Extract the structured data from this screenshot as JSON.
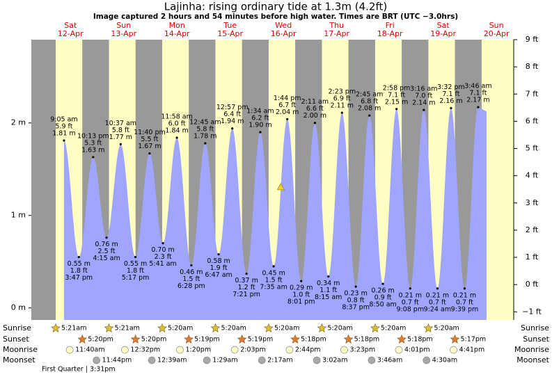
{
  "chart_data": {
    "type": "tide",
    "title": "Lajinha: rising  ordinary tide at 1.3m (4.2ft)",
    "subtitle": "Image captured 2 hours and 54 minutes before high water. Times are BRT (UTC −3.0hrs)",
    "ylim": [
      -0.13,
      2.9
    ],
    "yticks": [
      {
        "value": 0,
        "label": "0 m"
      },
      {
        "value": 1,
        "label": "1 m"
      },
      {
        "value": 2,
        "label": "2 m"
      }
    ],
    "y2lim": [
      -1.3,
      9.0
    ],
    "y2ticks": [
      {
        "value": -1,
        "label": "−1 ft"
      },
      {
        "value": 0,
        "label": "0 ft"
      },
      {
        "value": 1,
        "label": "1 ft"
      },
      {
        "value": 2,
        "label": "2 ft"
      },
      {
        "value": 3,
        "label": "3 ft"
      },
      {
        "value": 4,
        "label": "4 ft"
      },
      {
        "value": 5,
        "label": "5 ft"
      },
      {
        "value": 6,
        "label": "6 ft"
      },
      {
        "value": 7,
        "label": "7 ft"
      },
      {
        "value": 8,
        "label": "8 ft"
      },
      {
        "value": 9,
        "label": "9 ft"
      }
    ],
    "colors": {
      "water": "#a0a6ff",
      "day": "#ffffc4",
      "night": "#999999",
      "sunrise": "#d8c030",
      "sunset": "#e07a30",
      "moonrise": "#ffffc8",
      "moonset": "#a8a8a8"
    },
    "now": {
      "date": "16-Apr",
      "m": 1.3
    },
    "row_labels": [
      "Sunrise",
      "Sunset",
      "Moonrise",
      "Moonset"
    ],
    "phase": "First Quarter | 3:31pm",
    "days": [
      {
        "name": "Sat",
        "date": "12-Apr",
        "sunrise": "5:21am",
        "sunset": "5:20pm",
        "moonrise": "11:40am",
        "moonset": "11:44pm",
        "tides": [
          {
            "time": "9:05 am",
            "m": 1.81,
            "m_label": "1.81 m",
            "ft": 5.9,
            "ft_label": "5.9 ft"
          },
          {
            "time": "3:47 pm",
            "m": 0.55,
            "m_label": "0.55 m",
            "ft": 1.8,
            "ft_label": "1.8 ft"
          },
          {
            "time": "10:13 pm",
            "m": 1.63,
            "m_label": "1.63 m",
            "ft": 5.3,
            "ft_label": "5.3 ft"
          }
        ]
      },
      {
        "name": "Sun",
        "date": "13-Apr",
        "sunrise": "5:21am",
        "sunset": "5:20pm",
        "moonrise": "12:32pm",
        "tides": [
          {
            "time": "4:15 am",
            "m": 0.76,
            "m_label": "0.76 m",
            "ft": 2.5,
            "ft_label": "2.5 ft"
          },
          {
            "time": "10:37 am",
            "m": 1.77,
            "m_label": "1.77 m",
            "ft": 5.8,
            "ft_label": "5.8 ft"
          },
          {
            "time": "5:17 pm",
            "m": 0.55,
            "m_label": "0.55 m",
            "ft": 1.8,
            "ft_label": "1.8 ft"
          },
          {
            "time": "11:40 pm",
            "m": 1.67,
            "m_label": "1.67 m",
            "ft": 5.5,
            "ft_label": "5.5 ft"
          }
        ]
      },
      {
        "name": "Mon",
        "date": "14-Apr",
        "sunrise": "5:20am",
        "sunset": "5:19pm",
        "moonrise": "1:20pm",
        "moonset": "12:39am",
        "tides": [
          {
            "time": "5:41 am",
            "m": 0.7,
            "m_label": "0.70 m",
            "ft": 2.3,
            "ft_label": "2.3 ft"
          },
          {
            "time": "11:58 am",
            "m": 1.84,
            "m_label": "1.84 m",
            "ft": 6.0,
            "ft_label": "6.0 ft"
          },
          {
            "time": "6:28 pm",
            "m": 0.46,
            "m_label": "0.46 m",
            "ft": 1.5,
            "ft_label": "1.5 ft"
          }
        ]
      },
      {
        "name": "Tue",
        "date": "15-Apr",
        "sunrise": "5:20am",
        "sunset": "5:19pm",
        "moonrise": "2:03pm",
        "moonset": "1:29am",
        "tides": [
          {
            "time": "12:45 am",
            "m": 1.78,
            "m_label": "1.78 m",
            "ft": 5.8,
            "ft_label": "5.8 ft"
          },
          {
            "time": "6:47 am",
            "m": 0.58,
            "m_label": "0.58 m",
            "ft": 1.9,
            "ft_label": "1.9 ft"
          },
          {
            "time": "12:57 pm",
            "m": 1.94,
            "m_label": "1.94 m",
            "ft": 6.4,
            "ft_label": "6.4 ft"
          },
          {
            "time": "7:21 pm",
            "m": 0.37,
            "m_label": "0.37 m",
            "ft": 1.2,
            "ft_label": "1.2 ft"
          }
        ]
      },
      {
        "name": "Wed",
        "date": "16-Apr",
        "sunrise": "5:20am",
        "sunset": "5:18pm",
        "moonrise": "2:44pm",
        "moonset": "2:17am",
        "tides": [
          {
            "time": "1:34 am",
            "m": 1.9,
            "m_label": "1.90 m",
            "ft": 6.2,
            "ft_label": "6.2 ft"
          },
          {
            "time": "7:35 am",
            "m": 0.45,
            "m_label": "0.45 m",
            "ft": 1.5,
            "ft_label": "1.5 ft"
          },
          {
            "time": "1:44 pm",
            "m": 2.04,
            "m_label": "2.04 m",
            "ft": 6.7,
            "ft_label": "6.7 ft"
          },
          {
            "time": "8:01 pm",
            "m": 0.29,
            "m_label": "0.29 m",
            "ft": 1.0,
            "ft_label": "1.0 ft"
          }
        ]
      },
      {
        "name": "Thu",
        "date": "17-Apr",
        "sunrise": "5:20am",
        "sunset": "5:18pm",
        "moonrise": "3:23pm",
        "moonset": "3:02am",
        "tides": [
          {
            "time": "2:11 am",
            "m": 2.0,
            "m_label": "2.00 m",
            "ft": 6.6,
            "ft_label": "6.6 ft"
          },
          {
            "time": "8:15 am",
            "m": 0.34,
            "m_label": "0.34 m",
            "ft": 1.1,
            "ft_label": "1.1 ft"
          },
          {
            "time": "2:23 pm",
            "m": 2.11,
            "m_label": "2.11 m",
            "ft": 6.9,
            "ft_label": "6.9 ft"
          },
          {
            "time": "8:37 pm",
            "m": 0.23,
            "m_label": "0.23 m",
            "ft": 0.8,
            "ft_label": "0.8 ft"
          }
        ]
      },
      {
        "name": "Fri",
        "date": "18-Apr",
        "sunrise": "5:20am",
        "sunset": "5:18pm",
        "moonrise": "4:01pm",
        "moonset": "3:46am",
        "tides": [
          {
            "time": "2:45 am",
            "m": 2.08,
            "m_label": "2.08 m",
            "ft": 6.8,
            "ft_label": "6.8 ft"
          },
          {
            "time": "8:50 am",
            "m": 0.26,
            "m_label": "0.26 m",
            "ft": 0.9,
            "ft_label": "0.9 ft"
          },
          {
            "time": "2:58 pm",
            "m": 2.15,
            "m_label": "2.15 m",
            "ft": 7.1,
            "ft_label": "7.1 ft"
          },
          {
            "time": "9:08 pm",
            "m": 0.21,
            "m_label": "0.21 m",
            "ft": 0.7,
            "ft_label": "0.7 ft"
          }
        ]
      },
      {
        "name": "Sat",
        "date": "19-Apr",
        "sunrise": "5:20am",
        "sunset": "5:17pm",
        "moonrise": "4:41pm",
        "moonset": "4:30am",
        "tides": [
          {
            "time": "3:16 am",
            "m": 2.14,
            "m_label": "2.14 m",
            "ft": 7.0,
            "ft_label": "7.0 ft"
          },
          {
            "time": "9:24 am",
            "m": 0.21,
            "m_label": "0.21 m",
            "ft": 0.7,
            "ft_label": "0.7 ft"
          },
          {
            "time": "3:32 pm",
            "m": 2.16,
            "m_label": "2.16 m",
            "ft": 7.1,
            "ft_label": "7.1 ft"
          },
          {
            "time": "9:39 pm",
            "m": 0.21,
            "m_label": "0.21 m",
            "ft": 0.7,
            "ft_label": "0.7 ft"
          }
        ]
      },
      {
        "name": "Sun",
        "date": "20-Apr",
        "tides": [
          {
            "time": "3:46 am",
            "m": 2.17,
            "m_label": "2.17 m",
            "ft": 7.1,
            "ft_label": "7.1 ft"
          }
        ]
      }
    ]
  }
}
